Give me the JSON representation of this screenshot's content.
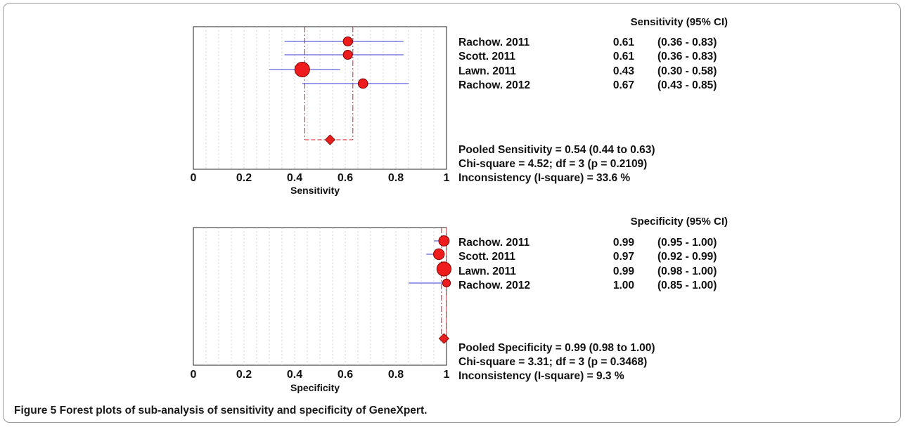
{
  "caption": {
    "label": "Figure 5",
    "text": "Forest plots of sub-analysis of sensitivity and specificity of GeneXpert."
  },
  "chart_data": [
    {
      "type": "forest",
      "measure_header": "Sensitivity (95% CI)",
      "xlabel": "Sensitivity",
      "xlim": [
        0,
        1
      ],
      "xticks": [
        "0",
        "0.2",
        "0.4",
        "0.6",
        "0.8",
        "1"
      ],
      "grid": true,
      "studies": [
        {
          "name": "Rachow. 2011",
          "estimate": 0.61,
          "lower": 0.36,
          "upper": 0.83,
          "estimate_label": "0.61",
          "ci_label": "(0.36 - 0.83)",
          "weight": 1.0
        },
        {
          "name": "Scott. 2011",
          "estimate": 0.61,
          "lower": 0.36,
          "upper": 0.83,
          "estimate_label": "0.61",
          "ci_label": "(0.36 - 0.83)",
          "weight": 1.0
        },
        {
          "name": "Lawn. 2011",
          "estimate": 0.43,
          "lower": 0.3,
          "upper": 0.58,
          "estimate_label": "0.43",
          "ci_label": "(0.30 - 0.58)",
          "weight": 2.6
        },
        {
          "name": "Rachow. 2012",
          "estimate": 0.67,
          "lower": 0.43,
          "upper": 0.85,
          "estimate_label": "0.67",
          "ci_label": "(0.43 - 0.85)",
          "weight": 1.1
        }
      ],
      "pooled": {
        "estimate": 0.54,
        "lower": 0.44,
        "upper": 0.63
      },
      "stats": [
        "Pooled Sensitivity = 0.54 (0.44 to 0.63)",
        "Chi-square = 4.52; df =  3 (p = 0.2109)",
        "Inconsistency (I-square) = 33.6 %"
      ],
      "colors": {
        "marker": "#ee1c1c",
        "ci_line": "#3a3ad8",
        "pooled": "#e61e1e",
        "ref_line": "#d42020"
      }
    },
    {
      "type": "forest",
      "measure_header": "Specificity (95% CI)",
      "xlabel": "Specificity",
      "xlim": [
        0,
        1
      ],
      "xticks": [
        "0",
        "0.2",
        "0.4",
        "0.6",
        "0.8",
        "1"
      ],
      "grid": true,
      "studies": [
        {
          "name": "Rachow. 2011",
          "estimate": 0.99,
          "lower": 0.95,
          "upper": 1.0,
          "estimate_label": "0.99",
          "ci_label": "(0.95 - 1.00)",
          "weight": 1.3
        },
        {
          "name": "Scott. 2011",
          "estimate": 0.97,
          "lower": 0.92,
          "upper": 0.99,
          "estimate_label": "0.97",
          "ci_label": "(0.92 - 0.99)",
          "weight": 1.4
        },
        {
          "name": "Lawn. 2011",
          "estimate": 0.99,
          "lower": 0.98,
          "upper": 1.0,
          "estimate_label": "0.99",
          "ci_label": "(0.98 - 1.00)",
          "weight": 2.4
        },
        {
          "name": "Rachow. 2012",
          "estimate": 1.0,
          "lower": 0.85,
          "upper": 1.0,
          "estimate_label": "1.00",
          "ci_label": "(0.85 - 1.00)",
          "weight": 0.75
        }
      ],
      "pooled": {
        "estimate": 0.99,
        "lower": 0.98,
        "upper": 1.0
      },
      "stats": [
        "Pooled Specificity = 0.99 (0.98 to 1.00)",
        "Chi-square = 3.31; df =  3 (p = 0.3468)",
        "Inconsistency (I-square) = 9.3 %"
      ],
      "colors": {
        "marker": "#ee1c1c",
        "ci_line": "#3a3ad8",
        "pooled": "#e61e1e",
        "ref_line": "#d42020"
      }
    }
  ]
}
